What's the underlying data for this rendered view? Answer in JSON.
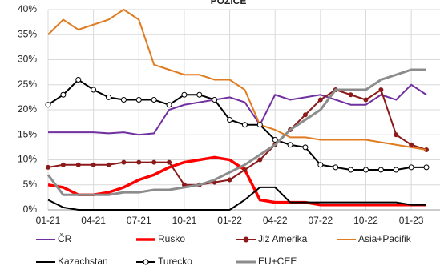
{
  "chart_data": {
    "type": "line",
    "title": "POZICE",
    "x": [
      0,
      1,
      2,
      3,
      4,
      5,
      6,
      7,
      8,
      9,
      10,
      11,
      12,
      13,
      14,
      15,
      16,
      17,
      18,
      19,
      20,
      21,
      22,
      23,
      24,
      25
    ],
    "xlim": [
      0,
      25.9
    ],
    "xticks": [
      {
        "value": 0,
        "label": "01-21"
      },
      {
        "value": 3,
        "label": "04-21"
      },
      {
        "value": 6,
        "label": "07-21"
      },
      {
        "value": 9,
        "label": "10-21"
      },
      {
        "value": 12,
        "label": "01-22"
      },
      {
        "value": 15,
        "label": "04-22"
      },
      {
        "value": 18,
        "label": "07-22"
      },
      {
        "value": 21,
        "label": "10-22"
      },
      {
        "value": 24,
        "label": "01-23"
      }
    ],
    "ylim": [
      0,
      40
    ],
    "yticks": [
      {
        "value": 0,
        "label": "0%"
      },
      {
        "value": 5,
        "label": "5%"
      },
      {
        "value": 10,
        "label": "10%"
      },
      {
        "value": 15,
        "label": "15%"
      },
      {
        "value": 20,
        "label": "20%"
      },
      {
        "value": 25,
        "label": "25%"
      },
      {
        "value": 30,
        "label": "30%"
      },
      {
        "value": 35,
        "label": "35%"
      },
      {
        "value": 40,
        "label": "40%"
      }
    ],
    "grid": true,
    "series": [
      {
        "name": "ČR",
        "color": "#7030a0",
        "values": [
          15.5,
          15.5,
          15.5,
          15.5,
          15.3,
          15.5,
          15,
          15.3,
          20,
          21,
          21.5,
          22,
          22.5,
          21.5,
          17,
          23,
          22,
          22.5,
          23,
          22,
          21,
          21,
          23,
          22,
          25,
          23
        ]
      },
      {
        "name": "Rusko",
        "color": "#ff0000",
        "values": [
          5,
          4.5,
          3,
          3,
          3.5,
          4.5,
          6,
          7,
          8.5,
          9.5,
          10,
          10.5,
          10,
          8,
          2,
          1.5,
          1.5,
          1.5,
          1,
          1,
          1,
          1,
          1,
          1,
          1,
          1
        ]
      },
      {
        "name": "Již Amerika",
        "color": "#8b1a1a",
        "values": [
          8.5,
          9,
          9,
          9,
          9,
          9.5,
          9.5,
          9.5,
          9.5,
          5,
          5,
          5.5,
          6,
          8,
          10,
          13,
          16,
          19,
          22,
          24,
          23,
          22,
          24,
          15,
          13,
          12
        ]
      },
      {
        "name": "Asia+Pacifik",
        "color": "#e07b20",
        "values": [
          35,
          38,
          36,
          37,
          38,
          40,
          38,
          29,
          28,
          27,
          27,
          26,
          26,
          24,
          17,
          16,
          14.5,
          14.5,
          14,
          14,
          14,
          14,
          13.5,
          13,
          12.5,
          12
        ]
      },
      {
        "name": "Kazachstan",
        "color": "#000000",
        "values": [
          2,
          0.5,
          0,
          0,
          0,
          0,
          0,
          0,
          0,
          0,
          0,
          0,
          0,
          2,
          4.5,
          4.5,
          1.5,
          1.5,
          1.5,
          1.5,
          1.5,
          1.5,
          1.5,
          1.5,
          1,
          1
        ]
      },
      {
        "name": "Turecko",
        "color": "#000000",
        "values": [
          21,
          23,
          26,
          24,
          22.5,
          22,
          22,
          22,
          21,
          23,
          23,
          22,
          18,
          17,
          17,
          14,
          13,
          12.5,
          9,
          8.5,
          8,
          8,
          8,
          8,
          8.5,
          8.5
        ]
      },
      {
        "name": "EU+CEE",
        "color": "#8c8c8c",
        "values": [
          7,
          3,
          3,
          3,
          3,
          3.5,
          3.5,
          4,
          4,
          4.5,
          5,
          6,
          7.5,
          9,
          11,
          13,
          16,
          18,
          20,
          24,
          24,
          24,
          26,
          27,
          28,
          28
        ]
      }
    ]
  }
}
